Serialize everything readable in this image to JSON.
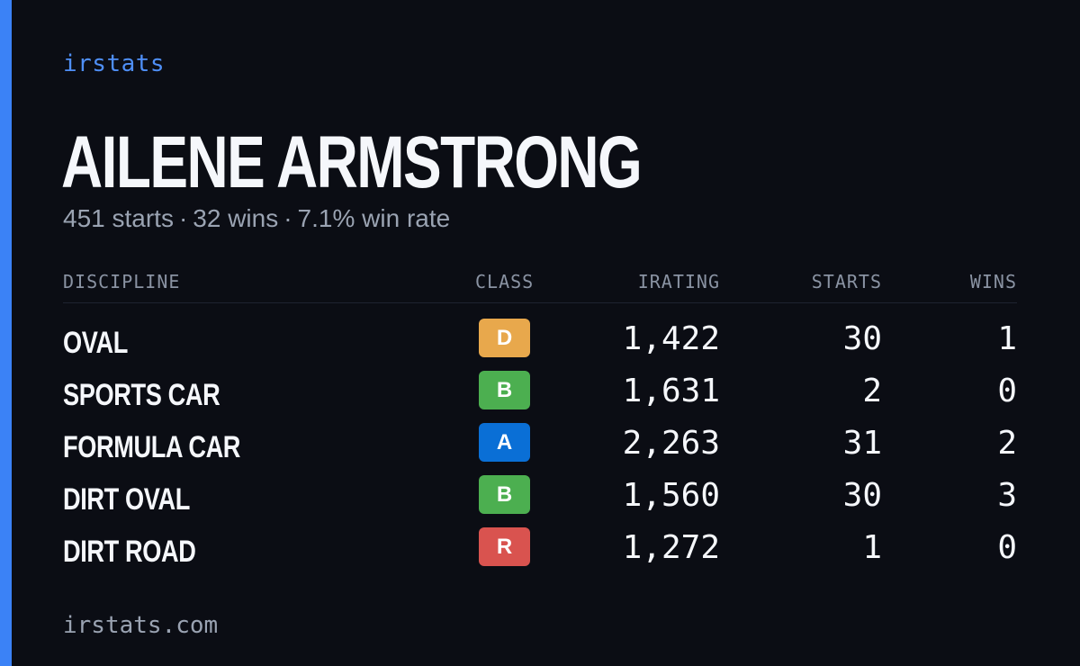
{
  "brand": "irstats",
  "driver": {
    "name": "AILENE ARMSTRONG",
    "starts_text": "451 starts",
    "separator": "·",
    "wins_text": "32 wins",
    "winrate_text": "7.1% win rate"
  },
  "table": {
    "headers": {
      "discipline": "DISCIPLINE",
      "class": "CLASS",
      "irating": "IRATING",
      "starts": "STARTS",
      "wins": "WINS"
    },
    "rows": [
      {
        "discipline": "OVAL",
        "class": "D",
        "class_color": "#e8a84c",
        "irating": "1,422",
        "starts": "30",
        "wins": "1"
      },
      {
        "discipline": "SPORTS CAR",
        "class": "B",
        "class_color": "#4caf50",
        "irating": "1,631",
        "starts": "2",
        "wins": "0"
      },
      {
        "discipline": "FORMULA CAR",
        "class": "A",
        "class_color": "#0a6fd6",
        "irating": "2,263",
        "starts": "31",
        "wins": "2"
      },
      {
        "discipline": "DIRT OVAL",
        "class": "B",
        "class_color": "#4caf50",
        "irating": "1,560",
        "starts": "30",
        "wins": "3"
      },
      {
        "discipline": "DIRT ROAD",
        "class": "R",
        "class_color": "#d9534f",
        "irating": "1,272",
        "starts": "1",
        "wins": "0"
      }
    ]
  },
  "footer": "irstats.com",
  "colors": {
    "background": "#0b0d14",
    "accent": "#3b82f6",
    "brand": "#4f8ff7",
    "muted": "#9aa3b2"
  }
}
